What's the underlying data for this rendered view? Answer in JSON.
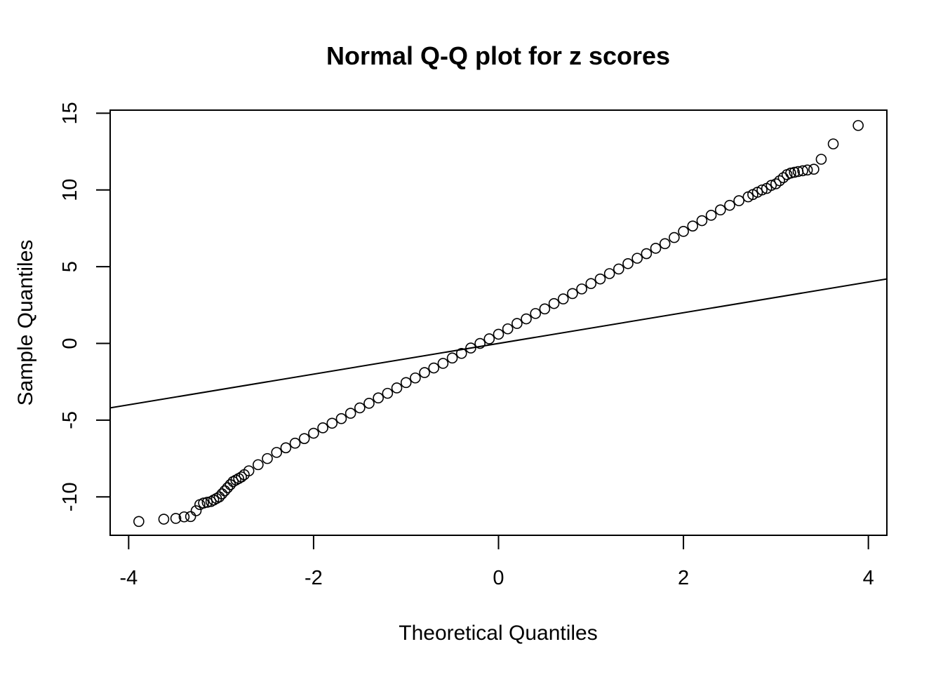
{
  "chart_data": {
    "type": "scatter",
    "title": "Normal Q-Q plot for z scores",
    "xlabel": "Theoretical Quantiles",
    "ylabel": "Sample Quantiles",
    "xlim": [
      -4.2,
      4.2
    ],
    "ylim": [
      -12.5,
      15.2
    ],
    "x_ticks": [
      -4,
      -2,
      0,
      2,
      4
    ],
    "x_tick_labels": [
      "-4",
      "-2",
      "0",
      "2",
      "4"
    ],
    "y_ticks": [
      -10,
      -5,
      0,
      5,
      10,
      15
    ],
    "y_tick_labels": [
      "-10",
      "-5",
      "0",
      "5",
      "10",
      "15"
    ],
    "grid": false,
    "legend": "none",
    "reference_line": {
      "intercept": 0,
      "slope": 1
    },
    "series": [
      {
        "x": [
          -3.89,
          -3.62,
          -3.49,
          -3.4,
          -3.33,
          -3.27,
          -3.23,
          -3.19,
          -3.15,
          -3.11,
          -3.08,
          -3.05,
          -3.02,
          -2.99,
          -2.96,
          -2.93,
          -2.9,
          -2.87,
          -2.84,
          -2.81,
          -2.78,
          -2.75,
          -2.7,
          -2.6,
          -2.5,
          -2.4,
          -2.3,
          -2.2,
          -2.1,
          -2.0,
          -1.9,
          -1.8,
          -1.7,
          -1.6,
          -1.5,
          -1.4,
          -1.3,
          -1.2,
          -1.1,
          -1.0,
          -0.9,
          -0.8,
          -0.7,
          -0.6,
          -0.5,
          -0.4,
          -0.3,
          -0.2,
          -0.1,
          0.0,
          0.1,
          0.2,
          0.3,
          0.4,
          0.5,
          0.6,
          0.7,
          0.8,
          0.9,
          1.0,
          1.1,
          1.2,
          1.3,
          1.4,
          1.5,
          1.6,
          1.7,
          1.8,
          1.9,
          2.0,
          2.1,
          2.2,
          2.3,
          2.4,
          2.5,
          2.6,
          2.7,
          2.75,
          2.8,
          2.85,
          2.9,
          2.95,
          3.0,
          3.04,
          3.08,
          3.12,
          3.16,
          3.2,
          3.24,
          3.29,
          3.34,
          3.41,
          3.49,
          3.62,
          3.89
        ],
        "y": [
          -11.6,
          -11.45,
          -11.4,
          -11.3,
          -11.28,
          -10.9,
          -10.5,
          -10.4,
          -10.35,
          -10.3,
          -10.2,
          -10.1,
          -10.0,
          -9.8,
          -9.6,
          -9.4,
          -9.2,
          -9.0,
          -8.9,
          -8.8,
          -8.7,
          -8.55,
          -8.3,
          -7.9,
          -7.5,
          -7.1,
          -6.8,
          -6.5,
          -6.2,
          -5.85,
          -5.5,
          -5.2,
          -4.9,
          -4.55,
          -4.2,
          -3.9,
          -3.55,
          -3.25,
          -2.9,
          -2.55,
          -2.25,
          -1.9,
          -1.6,
          -1.3,
          -0.95,
          -0.65,
          -0.3,
          0.0,
          0.3,
          0.6,
          0.95,
          1.3,
          1.6,
          1.95,
          2.25,
          2.6,
          2.9,
          3.25,
          3.55,
          3.9,
          4.2,
          4.55,
          4.85,
          5.2,
          5.55,
          5.85,
          6.2,
          6.5,
          6.9,
          7.3,
          7.65,
          8.0,
          8.35,
          8.7,
          9.0,
          9.3,
          9.55,
          9.7,
          9.85,
          10.0,
          10.1,
          10.3,
          10.4,
          10.6,
          10.8,
          11.0,
          11.1,
          11.15,
          11.2,
          11.25,
          11.3,
          11.35,
          12.0,
          13.0,
          14.2
        ]
      }
    ]
  }
}
